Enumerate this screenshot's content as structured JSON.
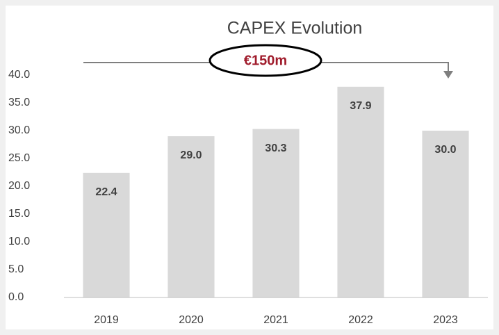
{
  "chart_data": {
    "type": "bar",
    "title": "CAPEX Evolution",
    "annotation": "€150m",
    "categories": [
      "2019",
      "2020",
      "2021",
      "2022",
      "2023"
    ],
    "values": [
      22.4,
      29,
      30.3,
      37.9,
      30
    ],
    "value_labels": [
      "22.4",
      "29.0",
      "30.3",
      "37.9",
      "30.0"
    ],
    "color": "#d9d9d9",
    "ylim": [
      0,
      40
    ],
    "yticks": [
      {
        "value": 0,
        "label": "0.0"
      },
      {
        "value": 5,
        "label": "5.0"
      },
      {
        "value": 10,
        "label": "10.0"
      },
      {
        "value": 15,
        "label": "15.0"
      },
      {
        "value": 20,
        "label": "20.0"
      },
      {
        "value": 25,
        "label": "25.0"
      },
      {
        "value": 30,
        "label": "30.0"
      },
      {
        "value": 35,
        "label": "35.0"
      },
      {
        "value": 40,
        "label": "40.0"
      }
    ],
    "grid": false
  }
}
